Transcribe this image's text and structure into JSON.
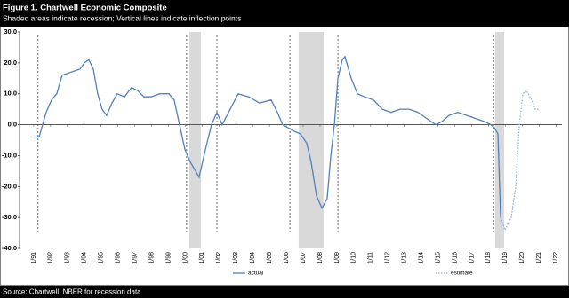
{
  "chart_data": {
    "type": "line",
    "title": "Figure 1. Chartwell Economic Composite",
    "subtitle": "Shaded areas indicate recession; Vertical lines indicate inflection points",
    "source": "Source: Chartwell, NBER for recession data",
    "xlim": [
      1990.16,
      2022.36
    ],
    "xticks": [
      {
        "value": 1991,
        "label": "1/91"
      },
      {
        "value": 1992,
        "label": "1/92"
      },
      {
        "value": 1993,
        "label": "1/93"
      },
      {
        "value": 1994,
        "label": "1/94"
      },
      {
        "value": 1995,
        "label": "1/95"
      },
      {
        "value": 1996,
        "label": "1/96"
      },
      {
        "value": 1997,
        "label": "1/97"
      },
      {
        "value": 1998,
        "label": "1/98"
      },
      {
        "value": 1999,
        "label": "1/99"
      },
      {
        "value": 2000,
        "label": "1/00"
      },
      {
        "value": 2001,
        "label": "1/01"
      },
      {
        "value": 2002,
        "label": "1/02"
      },
      {
        "value": 2003,
        "label": "1/03"
      },
      {
        "value": 2004,
        "label": "1/04"
      },
      {
        "value": 2005,
        "label": "1/05"
      },
      {
        "value": 2006,
        "label": "1/06"
      },
      {
        "value": 2007,
        "label": "1/07"
      },
      {
        "value": 2008,
        "label": "1/08"
      },
      {
        "value": 2009,
        "label": "1/09"
      },
      {
        "value": 2010,
        "label": "1/10"
      },
      {
        "value": 2011,
        "label": "1/11"
      },
      {
        "value": 2012,
        "label": "1/12"
      },
      {
        "value": 2013,
        "label": "1/13"
      },
      {
        "value": 2014,
        "label": "1/14"
      },
      {
        "value": 2015,
        "label": "1/15"
      },
      {
        "value": 2016,
        "label": "1/16"
      },
      {
        "value": 2017,
        "label": "1/17"
      },
      {
        "value": 2018,
        "label": "1/18"
      },
      {
        "value": 2019,
        "label": "1/19"
      },
      {
        "value": 2020,
        "label": "1/20"
      },
      {
        "value": 2021,
        "label": "1/21"
      },
      {
        "value": 2022,
        "label": "1/22"
      }
    ],
    "ylim": [
      -40,
      30
    ],
    "yticks": [
      {
        "value": 30,
        "label": "30.0"
      },
      {
        "value": 20,
        "label": "20.0"
      },
      {
        "value": 10,
        "label": "10.0"
      },
      {
        "value": 0,
        "label": "0.0"
      },
      {
        "value": -10,
        "label": "-10.0"
      },
      {
        "value": -20,
        "label": "-20.0"
      },
      {
        "value": -30,
        "label": "-30.0"
      },
      {
        "value": -40,
        "label": "-40.0"
      }
    ],
    "recessions": [
      [
        2000.24,
        2000.93
      ],
      [
        2006.73,
        2008.21
      ],
      [
        2018.4,
        2018.93
      ]
    ],
    "recession_color": "#d9d9d9",
    "inflections": [
      1991.26,
      2000.08,
      2001.88,
      2006.21,
      2009.06,
      2018.3
    ],
    "series": [
      {
        "name": "actual",
        "color": "#4f81bd",
        "style": "solid",
        "x": [
          1991.0,
          1991.32,
          1991.53,
          1991.74,
          1992.06,
          1992.37,
          1992.69,
          1993.22,
          1993.75,
          1994.01,
          1994.27,
          1994.54,
          1994.8,
          1995.06,
          1995.33,
          1995.65,
          1995.96,
          1996.39,
          1996.81,
          1997.18,
          1997.55,
          1997.97,
          1998.5,
          1999.03,
          1999.34,
          1999.66,
          1999.98,
          2000.29,
          2000.61,
          2000.82,
          2001.24,
          2001.56,
          2001.88,
          2002.19,
          2003.14,
          2003.78,
          2004.41,
          2005.1,
          2005.47,
          2005.78,
          2006.42,
          2006.84,
          2007.21,
          2007.47,
          2007.79,
          2008.11,
          2008.42,
          2008.64,
          2008.85,
          2009.06,
          2009.32,
          2009.48,
          2009.85,
          2010.22,
          2010.64,
          2011.17,
          2011.7,
          2012.22,
          2012.75,
          2013.28,
          2013.81,
          2014.34,
          2014.87,
          2015.23,
          2015.66,
          2016.18,
          2016.71,
          2017.24,
          2017.77,
          2018.14,
          2018.35,
          2018.56,
          2018.72
        ],
        "values": [
          -4,
          -4,
          0,
          4,
          8,
          10,
          16,
          17,
          18,
          20,
          21,
          18,
          10,
          5,
          3,
          7,
          10,
          9,
          12,
          11,
          9,
          9,
          10,
          10,
          8,
          0,
          -8,
          -12,
          -15,
          -17,
          -7,
          0,
          4,
          0,
          10,
          9,
          7,
          8,
          4,
          0,
          -2,
          -3,
          -6,
          -12,
          -23,
          -27,
          -24,
          -10,
          0,
          15,
          21,
          22,
          15,
          10,
          9,
          8,
          5,
          4,
          5,
          5,
          4,
          2,
          0,
          1,
          3,
          4,
          3,
          2,
          1,
          0,
          -1,
          -3,
          -30
        ]
      },
      {
        "name": "estimate",
        "color": "#8eb4e3",
        "style": "dotted",
        "x": [
          2018.72,
          2018.98,
          2019.35,
          2019.62,
          2019.83,
          2020.04,
          2020.25,
          2020.57,
          2020.78,
          2020.99
        ],
        "values": [
          -30,
          -34,
          -30,
          -20,
          0,
          10,
          11,
          8,
          5,
          5
        ]
      }
    ]
  }
}
